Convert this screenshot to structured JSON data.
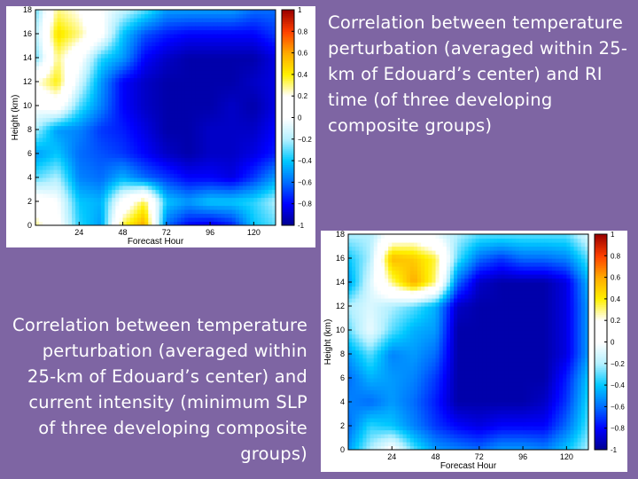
{
  "captions": {
    "top": "Correlation between temperature perturbation (averaged within 25-km of Edouard’s center) and RI time (of three developing composite groups)",
    "bottom": "Correlation between temperature perturbation (averaged within 25-km of Edouard’s center) and current intensity (minimum SLP of three developing composite groups)"
  },
  "colors": {
    "background": "#7e65a3",
    "colormap": [
      "#00008f",
      "#0000ff",
      "#006dff",
      "#00c8ff",
      "#b4f0ff",
      "#ffffff",
      "#ffffff",
      "#fff000",
      "#ffaa00",
      "#ff4000",
      "#9a0000"
    ]
  },
  "chart_data": [
    {
      "type": "heatmap",
      "name": "RI time correlation",
      "xlabel": "Forecast Hour",
      "ylabel": "Height (km)",
      "xticks": [
        24,
        48,
        72,
        96,
        120
      ],
      "yticks": [
        0,
        2,
        4,
        6,
        8,
        10,
        12,
        14,
        16,
        18
      ],
      "xlim": [
        0,
        132
      ],
      "ylim": [
        0,
        18
      ],
      "colorbar": {
        "ticks": [
          1,
          0.8,
          0.6,
          0.4,
          0.2,
          0,
          -0.2,
          -0.4,
          -0.6,
          -0.8,
          -1
        ],
        "range": [
          -1,
          1
        ]
      },
      "x": [
        0,
        12,
        24,
        36,
        48,
        60,
        72,
        84,
        96,
        108,
        120,
        132
      ],
      "y": [
        0,
        2,
        4,
        6,
        8,
        10,
        12,
        14,
        16,
        18
      ],
      "z": [
        [
          0.3,
          0.05,
          -0.35,
          -0.5,
          0.35,
          0.6,
          -0.6,
          -0.8,
          -0.85,
          -0.75,
          -0.4,
          -0.3
        ],
        [
          0.1,
          0.0,
          -0.4,
          -0.45,
          0.05,
          0.35,
          -0.4,
          -0.5,
          -0.4,
          -0.4,
          -0.35,
          -0.2
        ],
        [
          -0.3,
          -0.2,
          -0.55,
          -0.6,
          -0.45,
          -0.6,
          -0.7,
          -0.8,
          -0.8,
          -0.85,
          -0.7,
          -0.5
        ],
        [
          -0.5,
          -0.4,
          -0.6,
          -0.65,
          -0.7,
          -0.8,
          -0.9,
          -0.95,
          -0.9,
          -0.9,
          -0.85,
          -0.75
        ],
        [
          -0.2,
          -0.5,
          -0.55,
          -0.7,
          -0.75,
          -0.85,
          -0.95,
          -0.95,
          -0.9,
          -0.9,
          -0.9,
          -0.8
        ],
        [
          0.0,
          0.1,
          -0.3,
          -0.55,
          -0.8,
          -0.9,
          -0.95,
          -0.95,
          -0.95,
          -0.9,
          -0.95,
          -0.85
        ],
        [
          0.2,
          0.4,
          -0.1,
          -0.5,
          -0.8,
          -0.9,
          -0.95,
          -0.95,
          -0.95,
          -0.95,
          -0.9,
          -0.85
        ],
        [
          -0.3,
          0.3,
          0.05,
          -0.35,
          -0.5,
          -0.8,
          -0.9,
          -0.95,
          -0.95,
          -0.95,
          -0.95,
          -0.85
        ],
        [
          -0.2,
          0.45,
          0.3,
          0.05,
          -0.4,
          -0.65,
          -0.75,
          -0.8,
          -0.8,
          -0.8,
          -0.8,
          -0.7
        ],
        [
          -0.3,
          0.3,
          0.2,
          0.0,
          -0.15,
          -0.3,
          -0.5,
          -0.5,
          -0.5,
          -0.5,
          -0.6,
          -0.6
        ]
      ]
    },
    {
      "type": "heatmap",
      "name": "current intensity correlation",
      "xlabel": "Forecast Hour",
      "ylabel": "Height (km)",
      "xticks": [
        24,
        48,
        72,
        96,
        120
      ],
      "yticks": [
        0,
        2,
        4,
        6,
        8,
        10,
        12,
        14,
        16,
        18
      ],
      "xlim": [
        0,
        132
      ],
      "ylim": [
        0,
        18
      ],
      "colorbar": {
        "ticks": [
          1,
          0.8,
          0.6,
          0.4,
          0.2,
          0,
          -0.2,
          -0.4,
          -0.6,
          -0.8,
          -1
        ],
        "range": [
          -1,
          1
        ]
      },
      "x": [
        0,
        12,
        24,
        36,
        48,
        60,
        72,
        84,
        96,
        108,
        120,
        132
      ],
      "y": [
        0,
        2,
        4,
        6,
        8,
        10,
        12,
        14,
        16,
        18
      ],
      "z": [
        [
          -0.5,
          -0.2,
          0.05,
          -0.3,
          -0.5,
          -0.55,
          -0.6,
          -0.5,
          -0.5,
          -0.55,
          -0.4,
          -0.2
        ],
        [
          -0.6,
          -0.35,
          -0.4,
          -0.55,
          -0.7,
          -0.8,
          -0.85,
          -0.8,
          -0.8,
          -0.8,
          -0.6,
          -0.3
        ],
        [
          -0.55,
          -0.6,
          -0.5,
          -0.6,
          -0.75,
          -0.95,
          -0.95,
          -0.95,
          -0.95,
          -0.9,
          -0.7,
          -0.35
        ],
        [
          -0.6,
          -0.45,
          -0.5,
          -0.55,
          -0.7,
          -0.95,
          -0.95,
          -0.95,
          -0.95,
          -0.95,
          -0.75,
          -0.4
        ],
        [
          -0.5,
          -0.3,
          -0.55,
          -0.5,
          -0.6,
          -0.95,
          -0.95,
          -0.95,
          -0.95,
          -0.95,
          -0.85,
          -0.5
        ],
        [
          -0.3,
          -0.05,
          -0.3,
          -0.45,
          -0.5,
          -0.95,
          -0.95,
          -0.95,
          -0.95,
          -0.95,
          -0.85,
          -0.5
        ],
        [
          -0.2,
          -0.1,
          -0.2,
          -0.3,
          -0.45,
          -0.9,
          -0.95,
          -0.95,
          -0.95,
          -0.95,
          -0.85,
          -0.5
        ],
        [
          -0.5,
          -0.1,
          0.3,
          0.6,
          0.3,
          -0.6,
          -0.9,
          -0.95,
          -0.95,
          -0.95,
          -0.85,
          -0.45
        ],
        [
          -0.4,
          -0.2,
          0.55,
          0.5,
          0.35,
          -0.3,
          -0.6,
          -0.7,
          -0.6,
          -0.6,
          -0.55,
          -0.3
        ],
        [
          -0.2,
          -0.2,
          0.05,
          0.1,
          -0.05,
          -0.2,
          -0.3,
          -0.3,
          -0.3,
          -0.3,
          -0.3,
          -0.1
        ]
      ]
    }
  ]
}
